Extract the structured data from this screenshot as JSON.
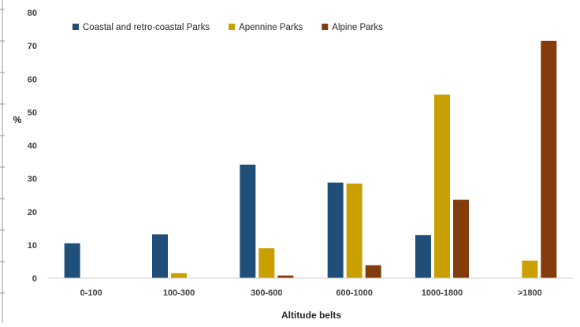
{
  "chart_data": {
    "type": "bar",
    "categories": [
      "0-100",
      "100-300",
      "300-600",
      "600-1000",
      "1000-1800",
      ">1800"
    ],
    "series": [
      {
        "name": "Coastal and retro-coastal Parks",
        "color": "#1f4e79",
        "values": [
          10.5,
          13.2,
          34.2,
          28.8,
          13.0,
          0
        ]
      },
      {
        "name": "Apennine Parks",
        "color": "#c9a000",
        "values": [
          0,
          1.5,
          9.0,
          28.5,
          55.3,
          5.3
        ]
      },
      {
        "name": "Alpine Parks",
        "color": "#843c0c",
        "values": [
          0,
          0,
          0.8,
          3.9,
          23.6,
          71.5
        ]
      }
    ],
    "xlabel": "Altitude belts",
    "ylabel": "%",
    "ylim": [
      0,
      80
    ],
    "yticks": [
      "0",
      "10",
      "20",
      "30",
      "40",
      "50",
      "60",
      "70",
      "80"
    ],
    "legend_position": "top-left",
    "grid": false
  }
}
